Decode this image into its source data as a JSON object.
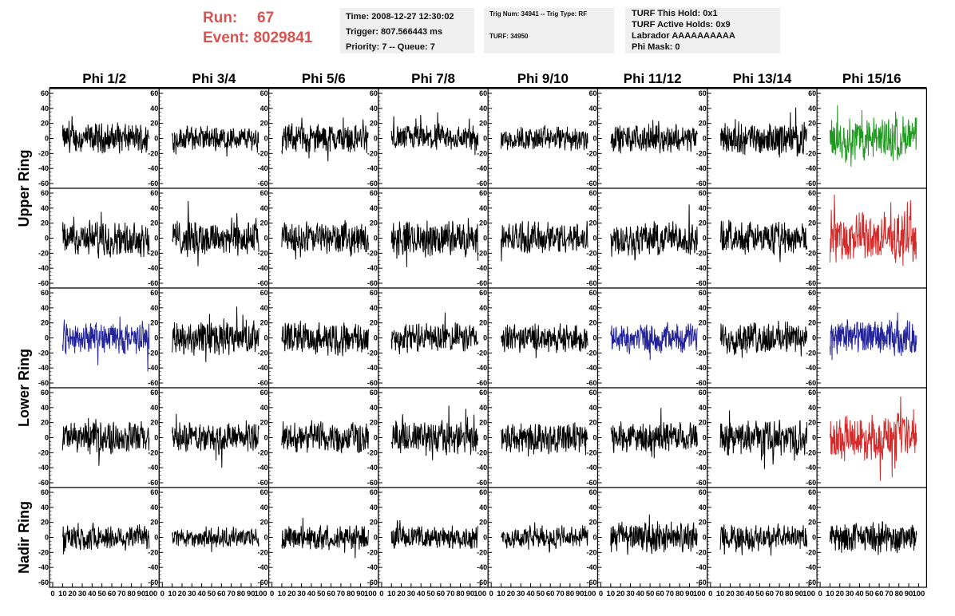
{
  "run": {
    "run_label": "Run:",
    "run_value": "67",
    "event_label": "Event:",
    "event_value": "8029841"
  },
  "info1": {
    "time": "Time: 2008-12-27 12:30:02",
    "trigger": "Trigger: 807.566443 ms",
    "priority": "Priority: 7 -- Queue: 7"
  },
  "info2": {
    "trig": "Trig Num: 34941 -- Trig Type: RF",
    "turf": "TURF: 34950"
  },
  "info3": {
    "hold": "TURF This Hold: 0x1",
    "active": "TURF Active Holds: 0x9",
    "labrador": "Labrador AAAAAAAAAA",
    "mask": "Phi Mask: 0"
  },
  "colors": {
    "black": "#000000",
    "green": "#1e9a1e",
    "red": "#d42a2a",
    "blue": "#23239a"
  },
  "chart_data": {
    "type": "line",
    "columns": [
      "Phi 1/2",
      "Phi 3/4",
      "Phi 5/6",
      "Phi 7/8",
      "Phi 9/10",
      "Phi 11/12",
      "Phi 13/14",
      "Phi 15/16"
    ],
    "rows": [
      {
        "label": "Upper Ring",
        "spans": 2
      },
      {
        "label": "Lower Ring",
        "spans": 2
      },
      {
        "label": "Nadir Ring",
        "spans": 1
      }
    ],
    "xlim": [
      0,
      100
    ],
    "ylim": [
      -60,
      60
    ],
    "x_ticks": [
      0,
      10,
      20,
      30,
      40,
      50,
      60,
      70,
      80,
      90,
      100
    ],
    "x_tick_labels": [
      "0",
      "10",
      "20",
      "30",
      "40",
      "50",
      "60",
      "70",
      "80",
      "90",
      "100"
    ],
    "y_ticks": [
      -60,
      -40,
      -20,
      0,
      20,
      40,
      60
    ],
    "y_tick_labels": [
      "-60",
      "-40",
      "-20",
      "0",
      "20",
      "40",
      "60"
    ],
    "panel_colors": [
      [
        "black",
        "black",
        "black",
        "black",
        "black",
        "black",
        "black",
        "green"
      ],
      [
        "black",
        "black",
        "black",
        "black",
        "black",
        "black",
        "black",
        "red"
      ],
      [
        "blue",
        "black",
        "black",
        "black",
        "black",
        "blue",
        "black",
        "blue"
      ],
      [
        "black",
        "black",
        "black",
        "black",
        "black",
        "black",
        "black",
        "red"
      ],
      [
        "black",
        "black",
        "black",
        "black",
        "black",
        "black",
        "black",
        "black"
      ]
    ],
    "panel_amplitude": [
      [
        12,
        10,
        12,
        11,
        10,
        11,
        13,
        18
      ],
      [
        14,
        15,
        13,
        14,
        13,
        14,
        13,
        20
      ],
      [
        13,
        14,
        13,
        12,
        11,
        12,
        13,
        14
      ],
      [
        13,
        12,
        13,
        14,
        13,
        12,
        14,
        18
      ],
      [
        11,
        8,
        10,
        9,
        9,
        13,
        10,
        12
      ]
    ],
    "samples_per_trace": 256
  }
}
